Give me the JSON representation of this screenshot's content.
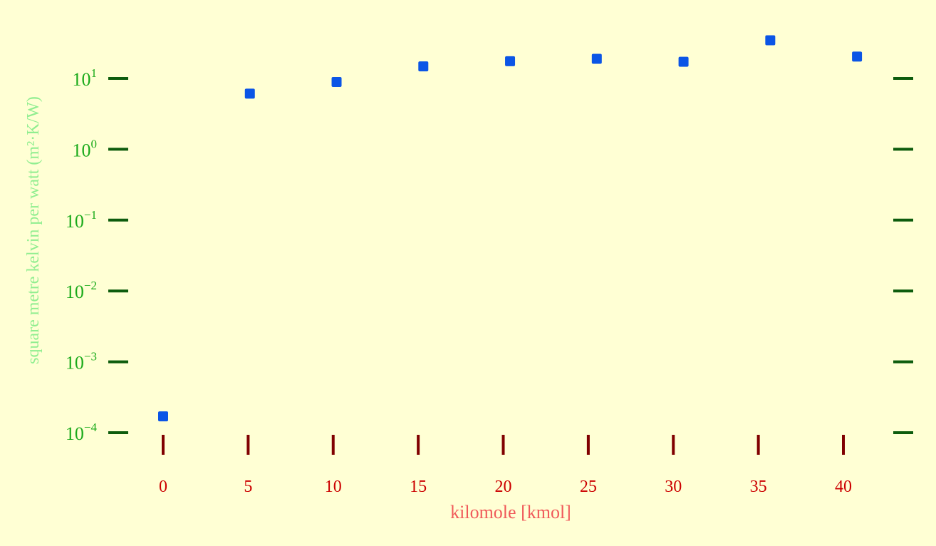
{
  "chart_data": {
    "type": "scatter",
    "title": "",
    "xlabel": "kilomole [kmol]",
    "ylabel": "square metre kelvin per watt (m²·K/W)",
    "x_scale": "linear",
    "y_scale": "log",
    "xlim": [
      -2,
      43
    ],
    "ylim": [
      0.0001,
      40
    ],
    "x_ticks": [
      0,
      5,
      10,
      15,
      20,
      25,
      30,
      35,
      40
    ],
    "y_ticks": [
      {
        "base": "10",
        "exp": "1",
        "value": 10
      },
      {
        "base": "10",
        "exp": "0",
        "value": 1
      },
      {
        "base": "10",
        "exp": "−1",
        "value": 0.1
      },
      {
        "base": "10",
        "exp": "−2",
        "value": 0.01
      },
      {
        "base": "10",
        "exp": "−3",
        "value": 0.001
      },
      {
        "base": "10",
        "exp": "−4",
        "value": 0.0001
      }
    ],
    "grid": false,
    "colors": {
      "marker": "#0b55e6",
      "y_tick_mark": "#0d5c0d",
      "x_tick_mark": "#800000",
      "y_tick_label": "#1aaa1a",
      "x_tick_label": "#cc0000",
      "ylabel": "#90ee90",
      "xlabel": "#f05a5a",
      "background": "#ffffd4"
    },
    "series": [
      {
        "points": [
          {
            "x": 0,
            "y": 0.00017
          },
          {
            "x": 5.1,
            "y": 6.1
          },
          {
            "x": 10.2,
            "y": 8.9
          },
          {
            "x": 15.3,
            "y": 14.8
          },
          {
            "x": 20.4,
            "y": 17.5
          },
          {
            "x": 25.5,
            "y": 18.9
          },
          {
            "x": 30.6,
            "y": 17.2
          },
          {
            "x": 35.7,
            "y": 34.5
          },
          {
            "x": 40.8,
            "y": 20.3
          }
        ]
      }
    ]
  }
}
